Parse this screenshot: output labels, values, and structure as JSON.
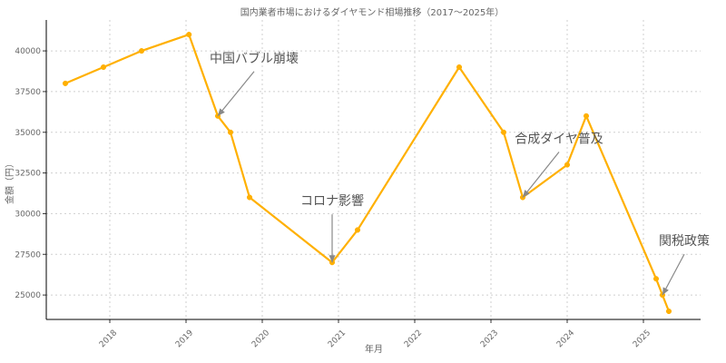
{
  "chart_data": {
    "type": "line",
    "title": "国内業者市場におけるダイヤモンド相場推移（2017〜2025年）",
    "xlabel": "年月",
    "ylabel": "金額（円）",
    "x_ticks": [
      "2018",
      "2019",
      "2020",
      "2021",
      "2022",
      "2023",
      "2024",
      "2025"
    ],
    "y_ticks": [
      25000,
      27500,
      30000,
      32500,
      35000,
      37500,
      40000
    ],
    "ylim": [
      23500,
      41900
    ],
    "xlim": [
      "2017-03-01",
      "2025-10-01"
    ],
    "grid": true,
    "series": [
      {
        "color": "#FFB000",
        "points": [
          {
            "x": "2017-06-01",
            "y": 38000
          },
          {
            "x": "2017-12-01",
            "y": 39000
          },
          {
            "x": "2018-06-01",
            "y": 40000
          },
          {
            "x": "2019-01-15",
            "y": 41000
          },
          {
            "x": "2019-06-01",
            "y": 36000
          },
          {
            "x": "2019-08-01",
            "y": 35000
          },
          {
            "x": "2019-11-01",
            "y": 31000
          },
          {
            "x": "2020-12-01",
            "y": 27000
          },
          {
            "x": "2021-04-01",
            "y": 29000
          },
          {
            "x": "2022-08-01",
            "y": 39000
          },
          {
            "x": "2023-03-01",
            "y": 35000
          },
          {
            "x": "2023-06-01",
            "y": 31000
          },
          {
            "x": "2024-01-01",
            "y": 33000
          },
          {
            "x": "2024-04-01",
            "y": 36000
          },
          {
            "x": "2025-03-01",
            "y": 26000
          },
          {
            "x": "2025-04-01",
            "y": 25000
          },
          {
            "x": "2025-05-01",
            "y": 24000
          }
        ]
      }
    ],
    "annotations": [
      {
        "text": "中国バブル崩壊",
        "point_index": 4
      },
      {
        "text": "コロナ影響",
        "point_index": 7
      },
      {
        "text": "合成ダイヤ普及",
        "point_index": 11
      },
      {
        "text": "関税政策",
        "point_index": 15
      }
    ]
  }
}
